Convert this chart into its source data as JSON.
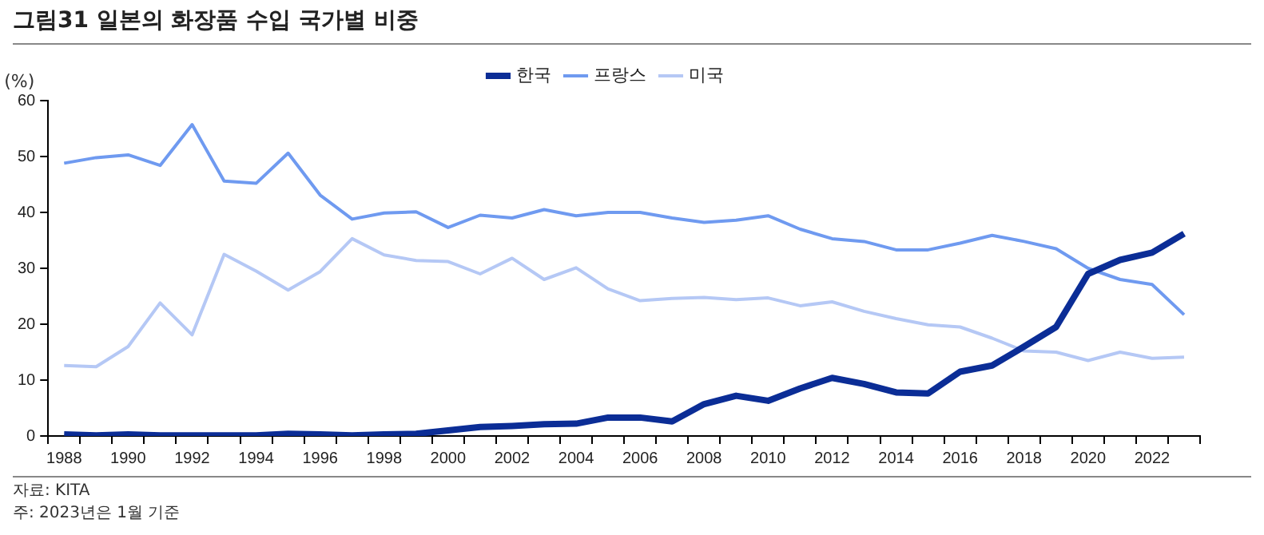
{
  "chart_data": {
    "type": "line",
    "title": "그림31 일본의 화장품 수입 국가별 비중",
    "ylabel": "(%)",
    "categories": [
      "1988",
      null,
      "1990",
      null,
      "1992",
      null,
      "1994",
      null,
      "1996",
      null,
      "1998",
      null,
      "2000",
      null,
      "2002",
      null,
      "2004",
      null,
      "2006",
      null,
      "2008",
      null,
      "2010",
      null,
      "2012",
      null,
      "2014",
      null,
      "2016",
      null,
      "2018",
      null,
      "2020",
      null,
      "2022",
      null
    ],
    "series": [
      {
        "name": "한국",
        "color": "#0b2d96",
        "values": [
          0.3,
          0.1,
          0.3,
          0.1,
          0.1,
          0.1,
          0.1,
          0.4,
          0.3,
          0.1,
          0.3,
          0.4,
          1.0,
          1.6,
          1.8,
          2.1,
          2.2,
          3.3,
          3.3,
          2.6,
          5.7,
          7.2,
          6.3,
          8.5,
          10.4,
          9.3,
          7.8,
          7.6,
          11.5,
          12.6,
          16,
          19.5,
          29,
          31.5,
          32.8,
          36.2
        ]
      },
      {
        "name": "프랑스",
        "color": "#6f9af0",
        "values": [
          48.8,
          49.8,
          50.3,
          48.4,
          55.7,
          45.6,
          45.2,
          50.6,
          43.1,
          38.8,
          39.9,
          40.1,
          37.3,
          39.5,
          39.0,
          40.5,
          39.4,
          40.0,
          40.0,
          39.0,
          38.2,
          38.6,
          39.4,
          37.0,
          35.3,
          34.8,
          33.3,
          33.3,
          34.5,
          35.9,
          34.8,
          33.5,
          30,
          28,
          27.1,
          21.7
        ]
      },
      {
        "name": "미국",
        "color": "#b5c8f5",
        "values": [
          12.6,
          12.4,
          16,
          23.8,
          18.1,
          32.5,
          29.5,
          26.1,
          29.4,
          35.3,
          32.4,
          31.4,
          31.2,
          29,
          31.8,
          28,
          30.1,
          26.3,
          24.2,
          24.6,
          24.8,
          24.4,
          24.7,
          23.3,
          24,
          22.3,
          21,
          19.9,
          19.5,
          17.5,
          15.2,
          15,
          13.5,
          15,
          13.9,
          14.1
        ]
      }
    ],
    "ylim": [
      0,
      60
    ],
    "yticks": [
      0,
      10,
      20,
      30,
      40,
      50,
      60
    ],
    "legend": "top",
    "marker": "none",
    "line_style": "solid",
    "annotations": [
      "자료: KITA",
      "주: 2023년은 1월 기준"
    ]
  }
}
